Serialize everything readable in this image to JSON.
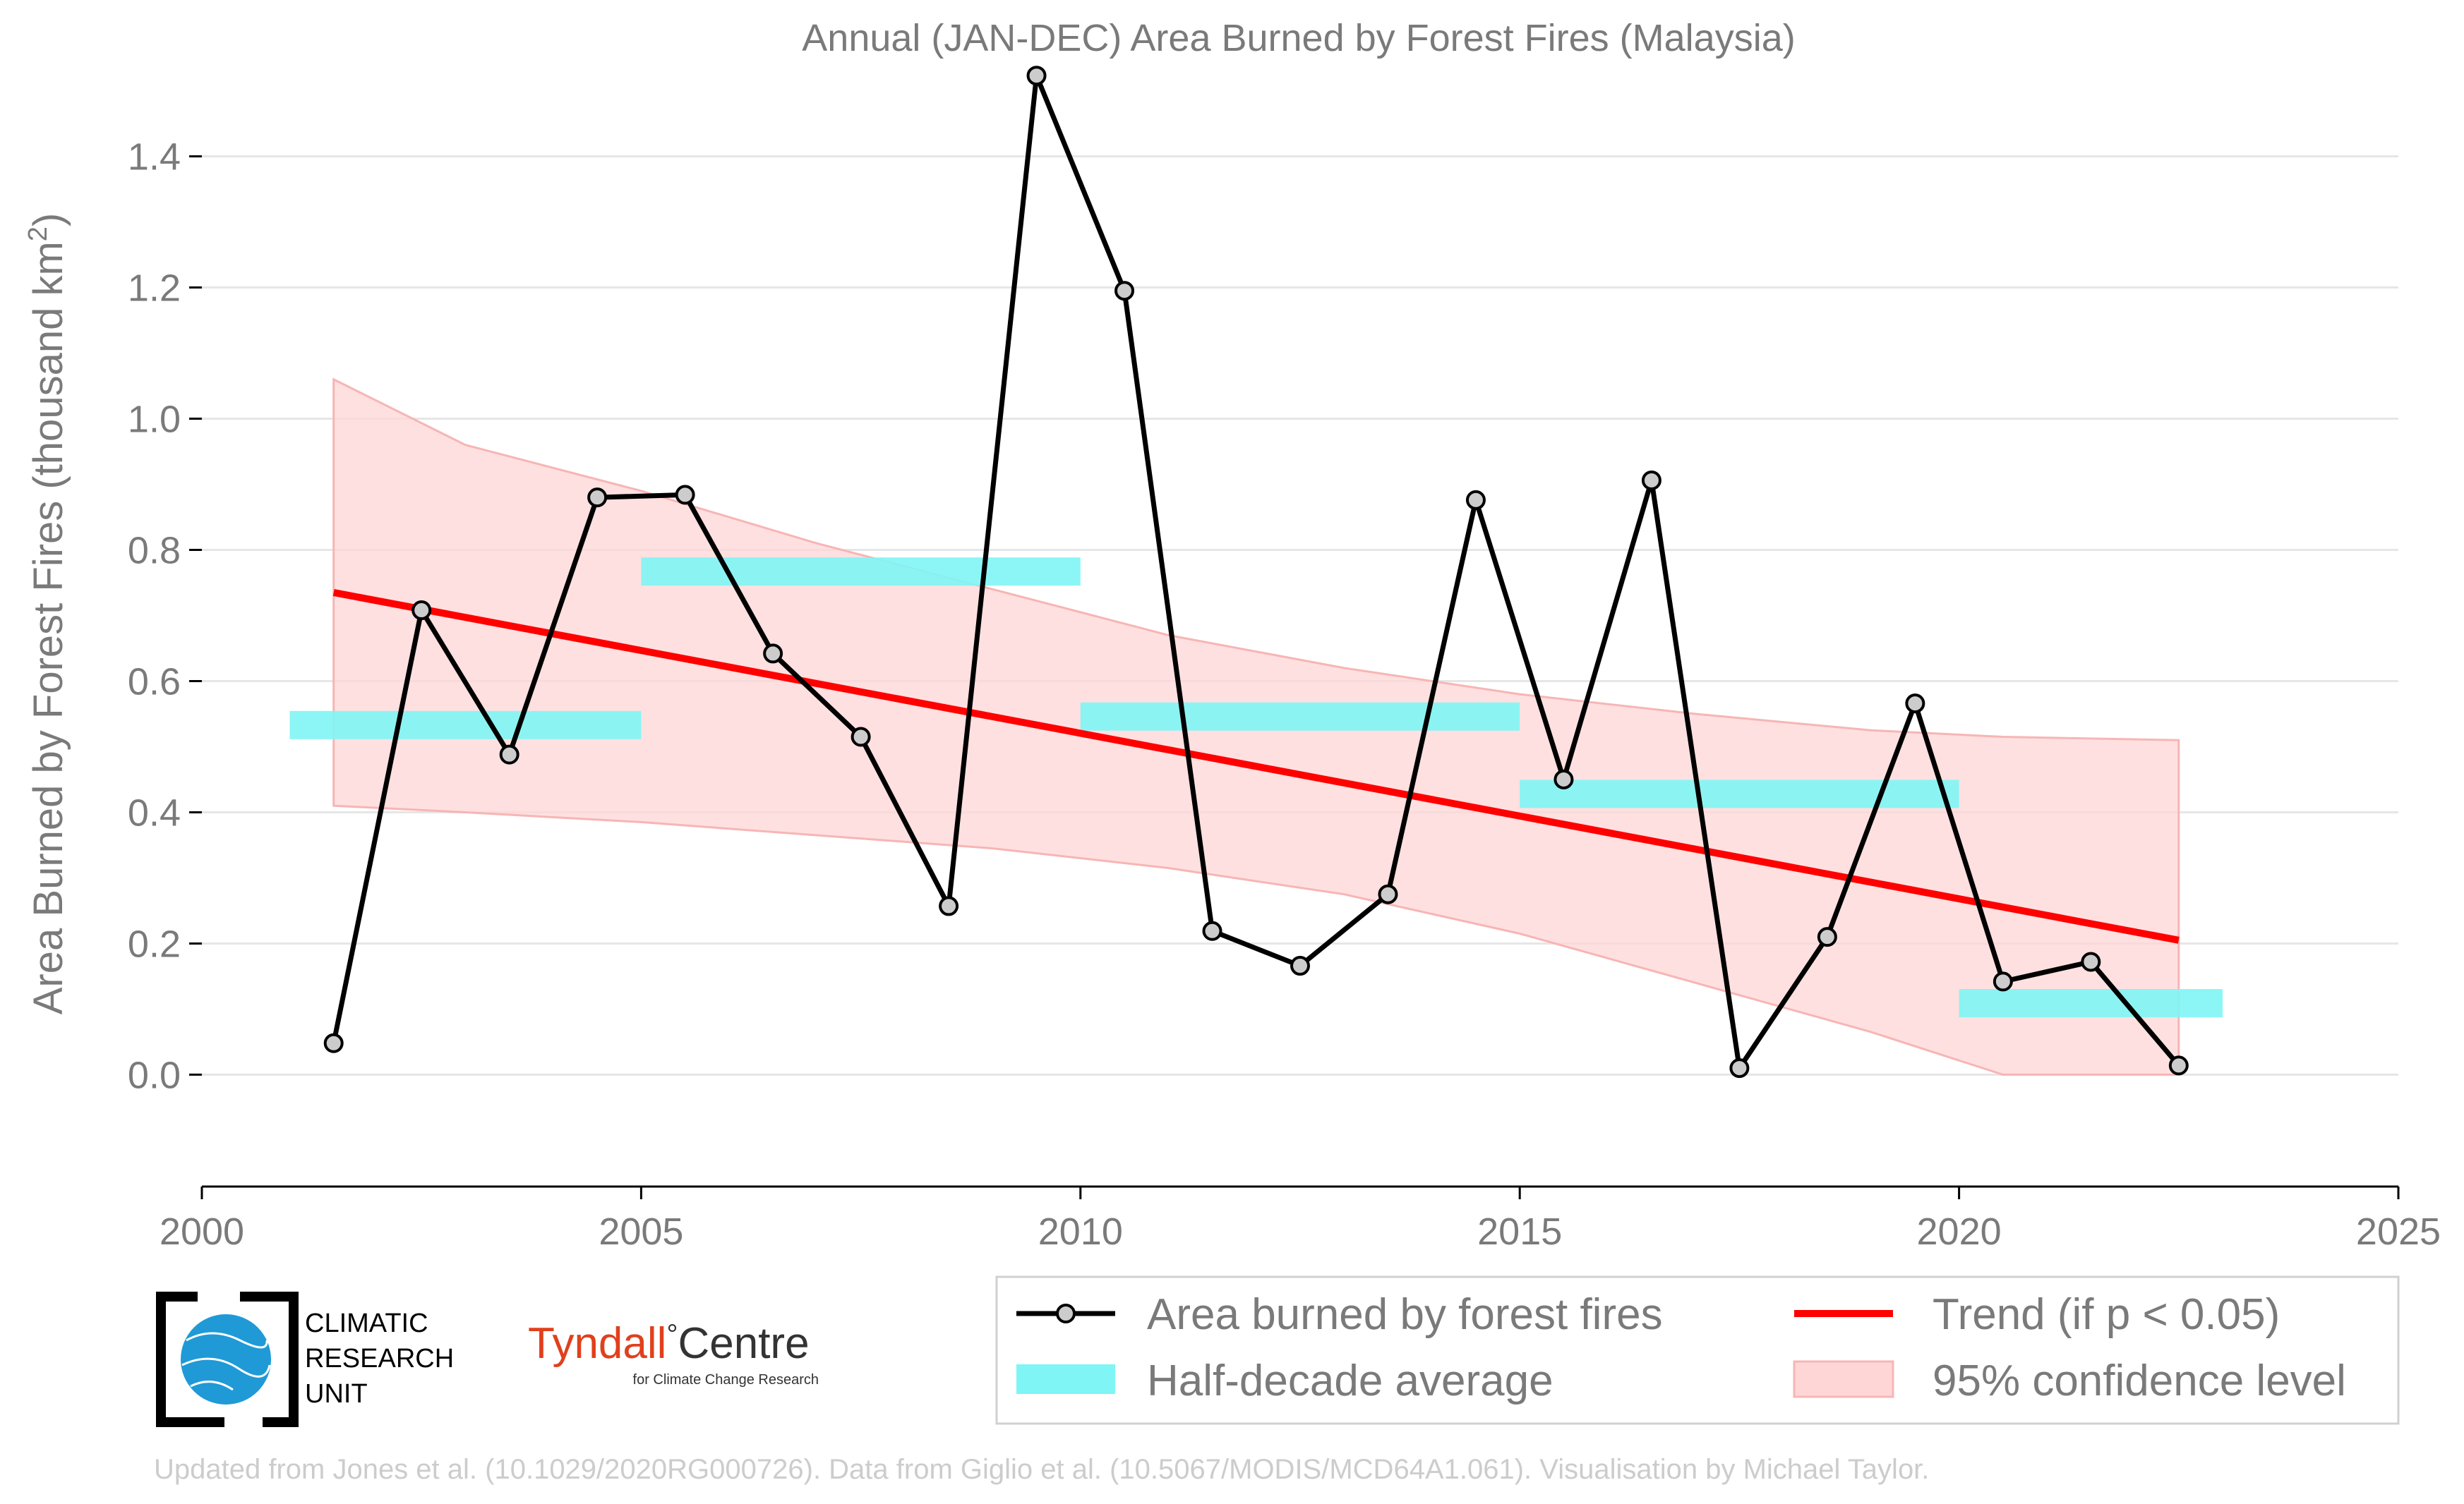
{
  "chart_data": {
    "type": "line",
    "title": "Annual (JAN-DEC) Area Burned by Forest Fires (Malaysia)",
    "ylabel": "Area Burned by Forest Fires (thousand km",
    "ylabel_sup": "2",
    "ylabel_end": ")",
    "xlim": [
      2000,
      2025
    ],
    "ylim": [
      -0.12,
      1.52
    ],
    "x_ticks": [
      2000,
      2005,
      2010,
      2015,
      2020,
      2025
    ],
    "x_tick_labels": [
      "2000",
      "2005",
      "2010",
      "2015",
      "2020",
      "2025"
    ],
    "y_ticks": [
      0.0,
      0.2,
      0.4,
      0.6,
      0.8,
      1.0,
      1.2,
      1.4
    ],
    "y_tick_labels": [
      "0.0",
      "0.2",
      "0.4",
      "0.6",
      "0.8",
      "1.0",
      "1.2",
      "1.4"
    ],
    "grid": true,
    "legend_position": "bottom-right",
    "colors": {
      "line": "#000000",
      "marker_fill": "#cccccc",
      "half_decade": "#7ff5f5",
      "trend": "#ff0000",
      "confidence": "#ffd6d6"
    },
    "series": [
      {
        "name": "Area burned by forest fires",
        "x": [
          2001.5,
          2002.5,
          2003.5,
          2004.5,
          2005.5,
          2006.5,
          2007.5,
          2008.5,
          2009.5,
          2010.5,
          2011.5,
          2012.5,
          2013.5,
          2014.5,
          2015.5,
          2016.5,
          2017.5,
          2018.5,
          2019.5,
          2020.5,
          2021.5,
          2022.5
        ],
        "values": [
          0.048,
          0.708,
          0.488,
          0.88,
          0.884,
          0.642,
          0.515,
          0.257,
          1.523,
          1.195,
          0.219,
          0.166,
          0.275,
          0.876,
          0.45,
          0.906,
          0.01,
          0.21,
          0.566,
          0.142,
          0.172,
          0.014
        ]
      },
      {
        "name": "Half-decade average",
        "segments": [
          {
            "x0": 2001,
            "x1": 2005,
            "value": 0.533
          },
          {
            "x0": 2005,
            "x1": 2010,
            "value": 0.767
          },
          {
            "x0": 2010,
            "x1": 2015,
            "value": 0.546
          },
          {
            "x0": 2015,
            "x1": 2020,
            "value": 0.428
          },
          {
            "x0": 2020,
            "x1": 2023,
            "value": 0.109
          }
        ]
      },
      {
        "name": "Trend (if p < 0.05)",
        "x": [
          2001.5,
          2022.5
        ],
        "values": [
          0.735,
          0.205
        ]
      },
      {
        "name": "95% confidence level",
        "x": [
          2001.5,
          2003,
          2005,
          2007,
          2009,
          2011,
          2013,
          2015,
          2017,
          2019,
          2020.5,
          2022.5
        ],
        "lower": [
          0.41,
          0.4,
          0.385,
          0.365,
          0.345,
          0.315,
          0.275,
          0.215,
          0.14,
          0.065,
          0.0,
          0.0
        ],
        "upper": [
          1.06,
          0.96,
          0.89,
          0.81,
          0.74,
          0.67,
          0.62,
          0.58,
          0.55,
          0.525,
          0.515,
          0.51
        ]
      }
    ]
  },
  "logos": {
    "cru_lines": [
      "CLIMATIC",
      "RESEARCH",
      "UNIT"
    ],
    "tyndall_name": "Tyndall",
    "tyndall_degree": "°",
    "tyndall_centre": "Centre",
    "tyndall_sub": "for Climate Change Research"
  },
  "footer": "Updated from Jones et al. (10.1029/2020RG000726). Data from Giglio et al. (10.5067/MODIS/MCD64A1.061). Visualisation by Michael Taylor."
}
